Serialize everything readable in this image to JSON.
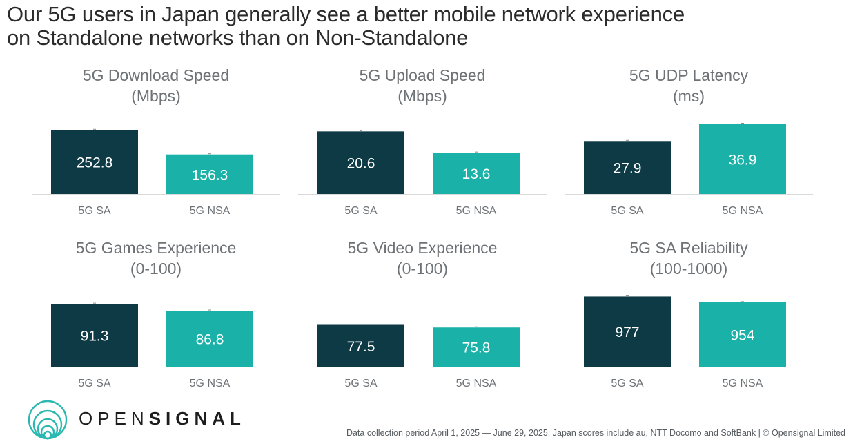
{
  "title": {
    "line1": "Our 5G users in Japan generally see a better mobile network experience",
    "line2": "on Standalone networks than on Non-Standalone"
  },
  "colors": {
    "sa": "#0d3a44",
    "nsa": "#1ab2a8",
    "label_on_bar": "#ffffff",
    "axis_label": "#6d7276",
    "baseline": "#d9d9d9"
  },
  "brand": {
    "prefix": "OPEN",
    "suffix": "SIGNAL",
    "logo_color": "#2bb8b0"
  },
  "footer": "Data collection period April 1, 2025 — June 29, 2025. Japan scores include au, NTT Docomo and SoftBank | © Opensignal Limited",
  "chart_data": [
    {
      "type": "bar",
      "title": "5G Download Speed",
      "subtitle": "(Mbps)",
      "categories": [
        "5G SA",
        "5G NSA"
      ],
      "values": [
        252.8,
        156.3
      ],
      "data_labels": [
        "252.8",
        "156.3"
      ],
      "ylim": [
        0,
        300
      ],
      "grid": false,
      "legend": "none"
    },
    {
      "type": "bar",
      "title": "5G Upload Speed",
      "subtitle": "(Mbps)",
      "categories": [
        "5G SA",
        "5G NSA"
      ],
      "values": [
        20.6,
        13.6
      ],
      "data_labels": [
        "20.6",
        "13.6"
      ],
      "ylim": [
        0,
        25
      ],
      "grid": false,
      "legend": "none"
    },
    {
      "type": "bar",
      "title": "5G UDP Latency",
      "subtitle": "(ms)",
      "categories": [
        "5G SA",
        "5G NSA"
      ],
      "values": [
        27.9,
        36.9
      ],
      "data_labels": [
        "27.9",
        "36.9"
      ],
      "ylim": [
        0,
        40
      ],
      "grid": false,
      "legend": "none"
    },
    {
      "type": "bar",
      "title": "5G Games Experience",
      "subtitle": "(0-100)",
      "categories": [
        "5G SA",
        "5G NSA"
      ],
      "values": [
        91.3,
        86.8
      ],
      "data_labels": [
        "91.3",
        "86.8"
      ],
      "ylim": [
        50,
        100
      ],
      "grid": false,
      "legend": "none"
    },
    {
      "type": "bar",
      "title": "5G Video Experience",
      "subtitle": "(0-100)",
      "categories": [
        "5G SA",
        "5G NSA"
      ],
      "values": [
        77.5,
        75.8
      ],
      "data_labels": [
        "77.5",
        "75.8"
      ],
      "ylim": [
        50,
        100
      ],
      "grid": false,
      "legend": "none"
    },
    {
      "type": "bar",
      "title": "5G SA Reliability",
      "subtitle": "(100-1000)",
      "categories": [
        "5G SA",
        "5G NSA"
      ],
      "values": [
        977,
        954
      ],
      "data_labels": [
        "977",
        "954"
      ],
      "ylim": [
        700,
        1000
      ],
      "grid": false,
      "legend": "none"
    }
  ]
}
